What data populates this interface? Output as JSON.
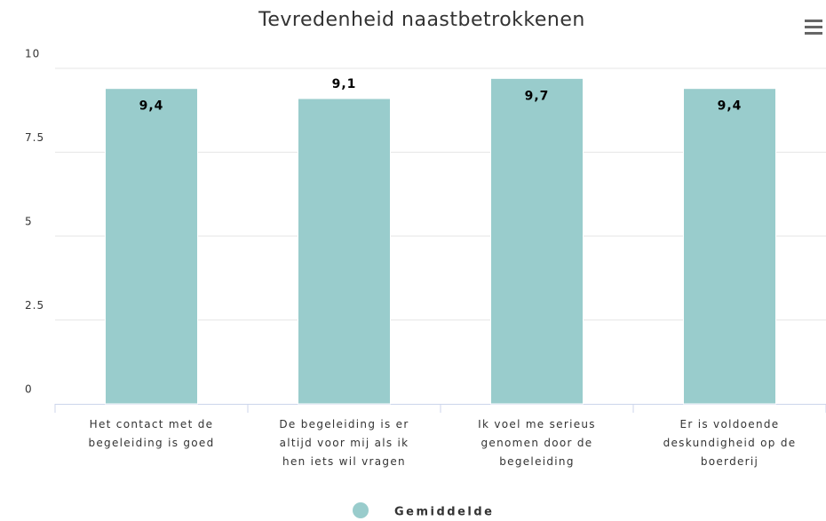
{
  "chart_data": {
    "type": "bar",
    "title": "Tevredenheid naastbetrokkenen",
    "categories": [
      "Het contact met de begeleiding is goed",
      "De begeleiding is er altijd voor mij als ik hen iets wil vragen",
      "Ik voel me serieus genomen door de begeleiding",
      "Er is voldoende deskundigheid op de boerderij"
    ],
    "series": [
      {
        "name": "Gemiddelde",
        "color": "#99cccc",
        "values": [
          9.4,
          9.1,
          9.7,
          9.4
        ],
        "value_labels": [
          "9,4",
          "9,1",
          "9,7",
          "9,4"
        ]
      }
    ],
    "ylim": [
      0,
      10
    ],
    "yticks": [
      0,
      2.5,
      5,
      7.5,
      10
    ],
    "grid": true
  }
}
